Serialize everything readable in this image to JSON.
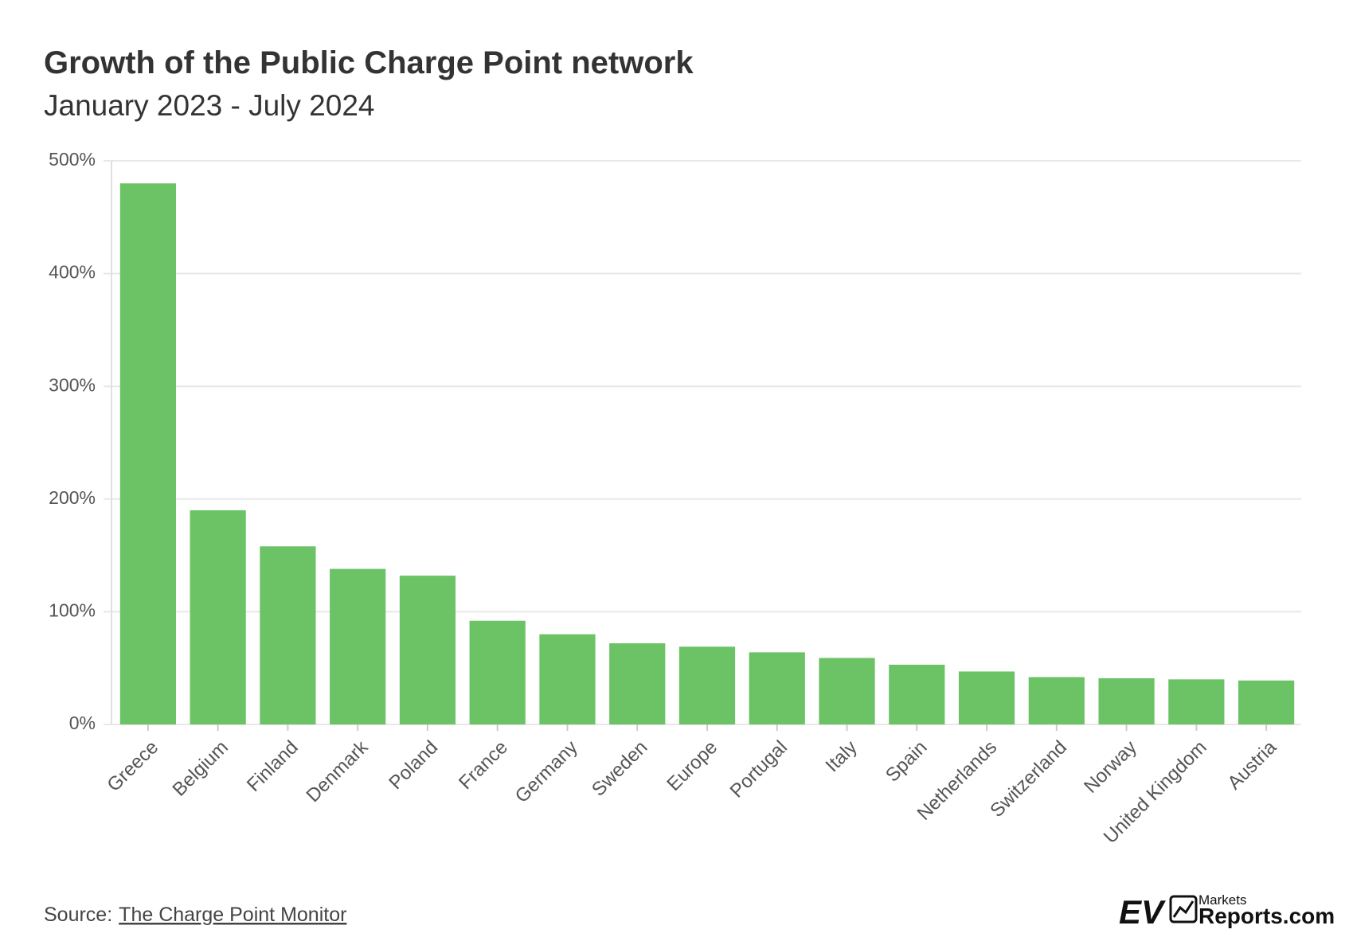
{
  "chart_data": {
    "type": "bar",
    "title": "Growth of the Public Charge Point network",
    "subtitle": "January 2023 - July 2024",
    "categories": [
      "Greece",
      "Belgium",
      "Finland",
      "Denmark",
      "Poland",
      "France",
      "Germany",
      "Sweden",
      "Europe",
      "Portugal",
      "Italy",
      "Spain",
      "Netherlands",
      "Switzerland",
      "Norway",
      "United Kingdom",
      "Austria"
    ],
    "values": [
      480,
      190,
      158,
      138,
      132,
      92,
      80,
      72,
      69,
      64,
      59,
      53,
      47,
      42,
      41,
      40,
      39
    ],
    "color": "#6cc366",
    "ylim": [
      0,
      500
    ],
    "yticks": [
      {
        "value": 0,
        "label": "0%"
      },
      {
        "value": 100,
        "label": "100%"
      },
      {
        "value": 200,
        "label": "200%"
      },
      {
        "value": 300,
        "label": "300%"
      },
      {
        "value": 400,
        "label": "400%"
      },
      {
        "value": 500,
        "label": "500%"
      }
    ],
    "grid": true,
    "source": {
      "prefix": "Source:",
      "link": "The Charge Point Monitor"
    },
    "logo": {
      "ev": "EV",
      "markets": "Markets",
      "reports": "Reports.com"
    }
  }
}
